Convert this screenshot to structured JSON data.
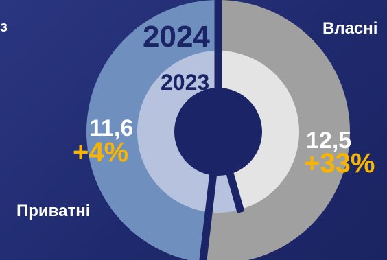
{
  "corner_glyph": "з",
  "chart_data": {
    "type": "pie",
    "subtype": "nested-donut",
    "title": "",
    "rings": [
      {
        "year_label": "2024",
        "position": "outer",
        "slices": [
          {
            "name": "Власні",
            "value": 12.5,
            "value_text": "12,5",
            "change_text": "+33%",
            "color": "#a0a0a0"
          },
          {
            "name": "Приватні",
            "value": 11.6,
            "value_text": "11,6",
            "change_text": "+4%",
            "color": "#6f8fbf"
          }
        ]
      },
      {
        "year_label": "2023",
        "position": "inner",
        "slices": [
          {
            "name": "Власні",
            "value": 9.4,
            "color": "#e4e4e4"
          },
          {
            "name": "Приватні",
            "value": 11.2,
            "color": "#b6c2de"
          }
        ]
      }
    ],
    "category_labels": {
      "own": "Власні",
      "private": "Приватні"
    },
    "accent_color": "#f7b500",
    "separator_color": "#1b2466"
  }
}
